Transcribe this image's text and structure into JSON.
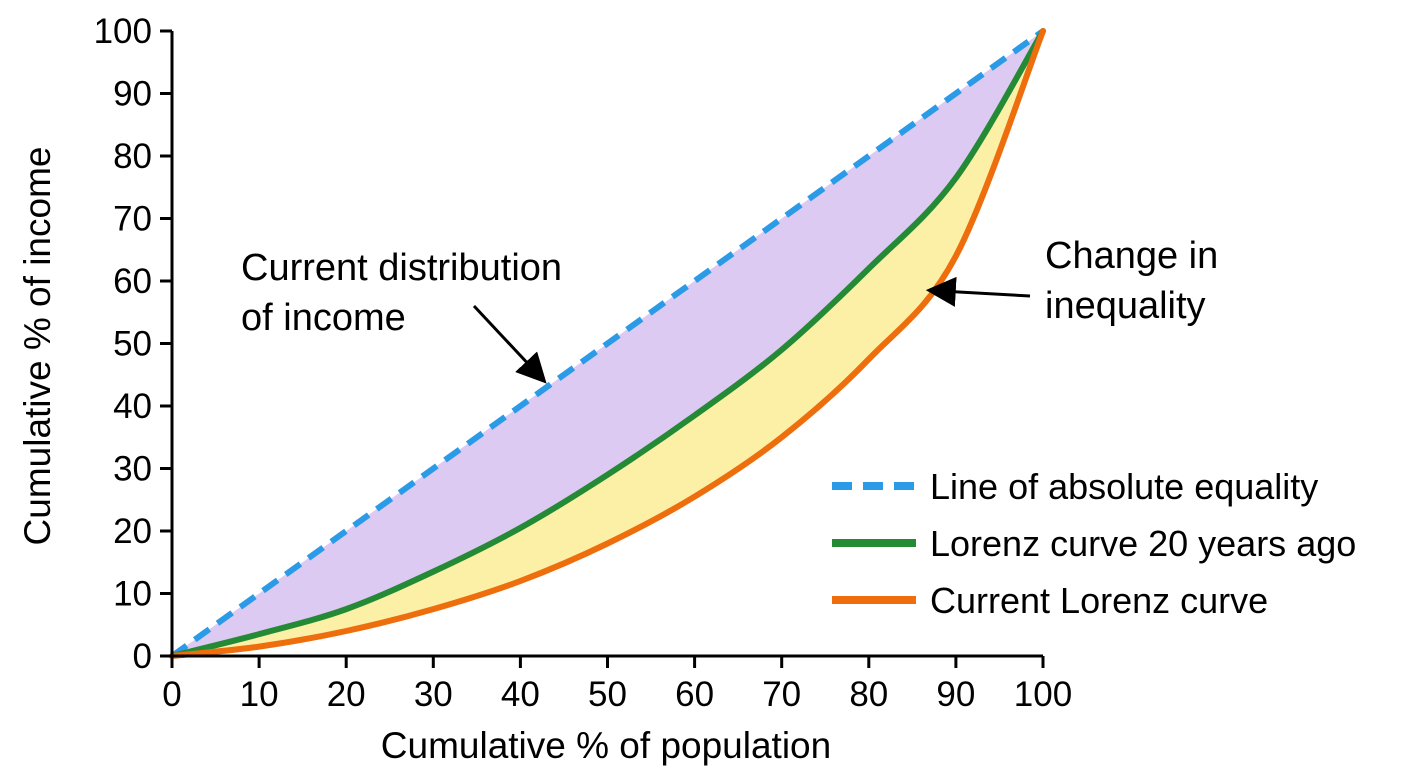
{
  "chart_data": {
    "type": "line",
    "xlabel": "Cumulative % of population",
    "ylabel": "Cumulative % of income",
    "xlim": [
      0,
      100
    ],
    "ylim": [
      0,
      100
    ],
    "xticks": [
      0,
      10,
      20,
      30,
      40,
      50,
      60,
      70,
      80,
      90,
      100
    ],
    "yticks": [
      0,
      10,
      20,
      30,
      40,
      50,
      60,
      70,
      80,
      90,
      100
    ],
    "grid": false,
    "legend_position": "bottom-right",
    "series": [
      {
        "name": "Line of absolute equality",
        "color": "#2b9be8",
        "style": "dashed",
        "x": [
          0,
          10,
          20,
          30,
          40,
          50,
          60,
          70,
          80,
          90,
          100
        ],
        "y": [
          0,
          10,
          20,
          30,
          40,
          50,
          60,
          70,
          80,
          90,
          100
        ]
      },
      {
        "name": "Lorenz curve 20 years ago",
        "color": "#248a35",
        "style": "solid",
        "x": [
          0,
          10,
          20,
          30,
          40,
          50,
          60,
          70,
          80,
          90,
          100
        ],
        "y": [
          0,
          3.5,
          7.5,
          13.5,
          20.5,
          29,
          38.5,
          49,
          62,
          76.5,
          100
        ]
      },
      {
        "name": "Current Lorenz curve",
        "color": "#ee6d0c",
        "style": "solid",
        "x": [
          0,
          10,
          20,
          30,
          40,
          50,
          60,
          70,
          80,
          90,
          100
        ],
        "y": [
          0,
          1.5,
          4,
          7.5,
          12,
          18,
          25.5,
          35,
          47.5,
          64,
          100
        ]
      }
    ],
    "fills": [
      {
        "between": [
          "Line of absolute equality",
          "Lorenz curve 20 years ago"
        ],
        "color": "#dccaf2"
      },
      {
        "between": [
          "Lorenz curve 20 years ago",
          "Current Lorenz curve"
        ],
        "color": "#fcefa6"
      }
    ],
    "annotations": [
      {
        "lines": [
          "Current distribution",
          "of income"
        ],
        "points_to": {
          "x": 43,
          "y": 43
        }
      },
      {
        "lines": [
          "Change in",
          "inequality"
        ],
        "points_to": {
          "x": 87,
          "y": 58
        }
      }
    ]
  }
}
